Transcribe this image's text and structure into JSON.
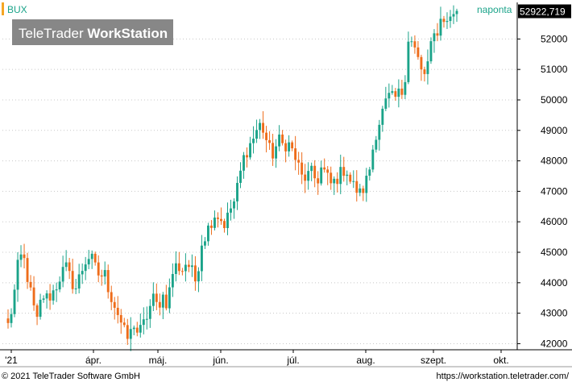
{
  "header": {
    "symbol": "BUX",
    "interval": "naponta",
    "watermark_part1": "TeleTrader ",
    "watermark_part2": "WorkStation"
  },
  "footer": {
    "copyright": "© 2021 TeleTrader Software GmbH",
    "url": "https://workstation.teletrader.com/"
  },
  "last_price": "52922,719",
  "colors": {
    "up": "#1aa389",
    "down": "#ee6c1a",
    "symbol_text": "#1aa389",
    "symbol_marker": "#f5a623",
    "grid": "#c8c8c8",
    "axis": "#000000",
    "watermark_bg": "#7a7a7a",
    "price_tag_bg": "#000000",
    "price_tag_text": "#ffffff"
  },
  "chart_data": {
    "type": "candlestick",
    "y_axis": {
      "side": "right",
      "min": 41800,
      "max": 53200,
      "ticks": [
        42000,
        43000,
        44000,
        45000,
        46000,
        47000,
        48000,
        49000,
        50000,
        51000,
        52000
      ]
    },
    "x_axis_labels": [
      "'21",
      "ápr.",
      "máj.",
      "jún.",
      "júl.",
      "aug.",
      "szept.",
      "okt."
    ],
    "grid": "horizontal-dotted",
    "anchors": [
      [
        0,
        42600
      ],
      [
        1,
        43300
      ],
      [
        2,
        44500
      ],
      [
        3,
        45000
      ],
      [
        4,
        44200
      ],
      [
        5,
        43400
      ],
      [
        6,
        42700
      ],
      [
        7,
        43600
      ],
      [
        8,
        43500
      ],
      [
        9,
        43600
      ],
      [
        10,
        43900
      ],
      [
        11,
        44300
      ],
      [
        12,
        44500
      ],
      [
        13,
        44100
      ],
      [
        14,
        43800
      ],
      [
        15,
        44300
      ],
      [
        16,
        44700
      ],
      [
        17,
        44900
      ],
      [
        18,
        44500
      ],
      [
        19,
        44200
      ],
      [
        20,
        44300
      ],
      [
        21,
        43700
      ],
      [
        22,
        43300
      ],
      [
        23,
        42900
      ],
      [
        24,
        42400
      ],
      [
        25,
        42100
      ],
      [
        26,
        42700
      ],
      [
        27,
        42300
      ],
      [
        28,
        42600
      ],
      [
        29,
        43000
      ],
      [
        30,
        43500
      ],
      [
        31,
        43200
      ],
      [
        32,
        43600
      ],
      [
        33,
        43300
      ],
      [
        34,
        44300
      ],
      [
        35,
        44600
      ],
      [
        36,
        44400
      ],
      [
        37,
        44700
      ],
      [
        38,
        44400
      ],
      [
        39,
        44000
      ],
      [
        40,
        45300
      ],
      [
        41,
        45600
      ],
      [
        42,
        46000
      ],
      [
        43,
        46300
      ],
      [
        44,
        46100
      ],
      [
        45,
        45900
      ],
      [
        46,
        46400
      ],
      [
        47,
        46700
      ],
      [
        48,
        47500
      ],
      [
        49,
        48200
      ],
      [
        50,
        48500
      ],
      [
        51,
        48800
      ],
      [
        52,
        49200
      ],
      [
        53,
        49000
      ],
      [
        54,
        48400
      ],
      [
        55,
        48200
      ],
      [
        56,
        48700
      ],
      [
        57,
        48500
      ],
      [
        58,
        48600
      ],
      [
        59,
        48300
      ],
      [
        60,
        47900
      ],
      [
        61,
        47400
      ],
      [
        62,
        47500
      ],
      [
        63,
        47600
      ],
      [
        64,
        47300
      ],
      [
        65,
        47800
      ],
      [
        66,
        47500
      ],
      [
        67,
        47200
      ],
      [
        68,
        47400
      ],
      [
        69,
        47600
      ],
      [
        70,
        47800
      ],
      [
        71,
        47300
      ],
      [
        72,
        47100
      ],
      [
        73,
        46900
      ],
      [
        74,
        47200
      ],
      [
        75,
        47800
      ],
      [
        76,
        48800
      ],
      [
        77,
        49300
      ],
      [
        78,
        49800
      ],
      [
        79,
        50100
      ],
      [
        80,
        50000
      ],
      [
        81,
        50200
      ],
      [
        82,
        50300
      ],
      [
        83,
        52100
      ],
      [
        84,
        51800
      ],
      [
        85,
        51300
      ],
      [
        86,
        50700
      ],
      [
        87,
        51200
      ],
      [
        88,
        52000
      ],
      [
        89,
        52300
      ],
      [
        90,
        52800
      ],
      [
        91,
        52500
      ],
      [
        92,
        52900
      ],
      [
        93,
        52922
      ]
    ]
  }
}
